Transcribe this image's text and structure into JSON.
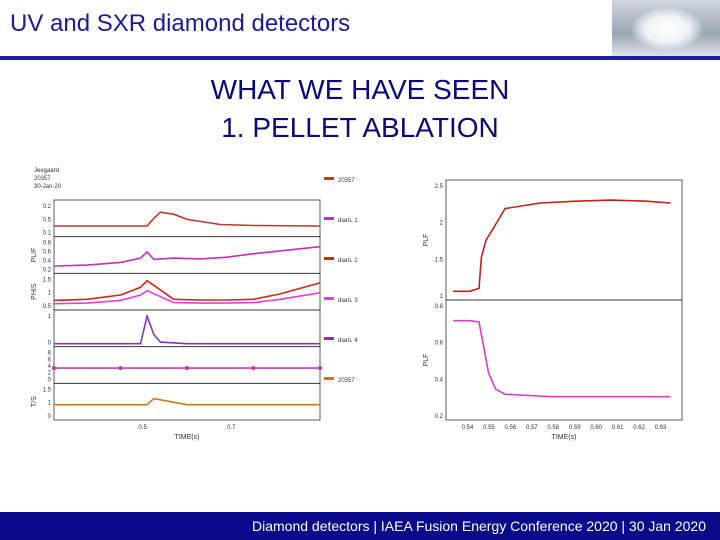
{
  "slide": {
    "title": "UV and SXR diamond detectors",
    "heading_line1": "WHAT WE HAVE SEEN",
    "heading_line2": "1. PELLET ABLATION",
    "footer": "Diamond detectors | IAEA Fusion Energy Conference 2020 | 30 Jan 2020"
  },
  "colors": {
    "title": "#1a1aa0",
    "heading": "#0a0a7a",
    "footer_bg": "#0a0a8a"
  },
  "chart_data": [
    {
      "type": "line",
      "title": "",
      "header": [
        "Jeegaard",
        "20357",
        "30-Jan-20"
      ],
      "xlabel": "TIME(s)",
      "x_ticks": [
        "0.5",
        "0.7"
      ],
      "xlim": [
        0.4,
        0.8
      ],
      "panels": [
        {
          "ylabel": "",
          "y_ticks": [
            "0.2",
            "0.5",
            "0.1"
          ],
          "ylim": [
            0,
            0.6
          ],
          "series": [
            {
              "name": "20357",
              "color": "#c0392b",
              "x": [
                0.4,
                0.48,
                0.52,
                0.54,
                0.55,
                0.56,
                0.58,
                0.6,
                0.65,
                0.7,
                0.8
              ],
              "y": [
                0.15,
                0.15,
                0.15,
                0.15,
                0.3,
                0.42,
                0.38,
                0.28,
                0.18,
                0.16,
                0.15
              ]
            }
          ]
        },
        {
          "ylabel": "PLIF",
          "y_ticks": [
            "0.8",
            "0.6",
            "0.4",
            "0.2"
          ],
          "ylim": [
            0.2,
            0.9
          ],
          "series": [
            {
              "name": "diam. 1",
              "color": "#c030c0",
              "x": [
                0.4,
                0.45,
                0.5,
                0.53,
                0.54,
                0.55,
                0.58,
                0.62,
                0.66,
                0.7,
                0.75,
                0.8
              ],
              "y": [
                0.3,
                0.32,
                0.38,
                0.48,
                0.62,
                0.45,
                0.48,
                0.46,
                0.5,
                0.58,
                0.66,
                0.74
              ]
            }
          ]
        },
        {
          "ylabel": "PHIS",
          "y_ticks": [
            "1.5",
            "1",
            "0.5"
          ],
          "ylim": [
            0.2,
            1.6
          ],
          "series": [
            {
              "name": "diam. 2",
              "color": "#cc2a10",
              "x": [
                0.4,
                0.45,
                0.5,
                0.53,
                0.54,
                0.58,
                0.62,
                0.66,
                0.7,
                0.74,
                0.8
              ],
              "y": [
                0.5,
                0.55,
                0.75,
                1.1,
                1.4,
                0.55,
                0.52,
                0.52,
                0.55,
                0.8,
                1.3
              ]
            },
            {
              "name": "diam. 3",
              "color": "#e040e0",
              "x": [
                0.4,
                0.45,
                0.5,
                0.53,
                0.54,
                0.58,
                0.62,
                0.66,
                0.7,
                0.74,
                0.8
              ],
              "y": [
                0.35,
                0.38,
                0.5,
                0.75,
                0.95,
                0.4,
                0.38,
                0.38,
                0.4,
                0.55,
                0.85
              ]
            }
          ]
        },
        {
          "ylabel": "",
          "y_ticks": [
            "1",
            "0"
          ],
          "ylim": [
            0,
            1
          ],
          "series": [
            {
              "name": "diam. 4",
              "color": "#8b30c0",
              "x": [
                0.4,
                0.53,
                0.54,
                0.55,
                0.56,
                0.6,
                0.8
              ],
              "y": [
                0.0,
                0.0,
                0.9,
                0.3,
                0.05,
                0.0,
                0.0
              ]
            }
          ]
        },
        {
          "ylabel": "",
          "y_ticks": [
            "8",
            "6",
            "4",
            "2",
            "0"
          ],
          "ylim": [
            -1,
            9
          ],
          "series": [
            {
              "name": "markers",
              "color": "#c040c0",
              "x": [
                0.4,
                0.5,
                0.6,
                0.7,
                0.8
              ],
              "y": [
                3,
                3,
                3,
                3,
                3
              ]
            }
          ]
        },
        {
          "ylabel": "T/S",
          "y_ticks": [
            "1.5",
            "1",
            "0"
          ],
          "ylim": [
            -1,
            2
          ],
          "series": [
            {
              "name": "20357",
              "color": "#c87a14",
              "x": [
                0.4,
                0.5,
                0.54,
                0.55,
                0.6,
                0.7,
                0.8
              ],
              "y": [
                0.2,
                0.2,
                0.2,
                0.8,
                0.2,
                0.2,
                0.2
              ]
            }
          ]
        }
      ]
    },
    {
      "type": "line",
      "xlabel": "TIME(s)",
      "x_ticks": [
        "0.54",
        "0.55",
        "0.56",
        "0.57",
        "0.58",
        "0.59",
        "0.60",
        "0.61",
        "0.62",
        "0.63"
      ],
      "xlim": [
        0.535,
        0.635
      ],
      "panels": [
        {
          "ylabel": "PLF",
          "y_ticks": [
            "2.5",
            "2",
            "1.5",
            "1"
          ],
          "ylim": [
            0.9,
            2.9
          ],
          "series": [
            {
              "name": "top",
              "color": "#c0221a",
              "x": [
                0.538,
                0.545,
                0.549,
                0.55,
                0.552,
                0.555,
                0.56,
                0.575,
                0.59,
                0.605,
                0.62,
                0.63
              ],
              "y": [
                1.0,
                1.0,
                1.05,
                1.6,
                1.9,
                2.1,
                2.45,
                2.55,
                2.58,
                2.6,
                2.58,
                2.55
              ]
            }
          ]
        },
        {
          "ylabel": "PLF",
          "y_ticks": [
            "0.8",
            "0.6",
            "0.4",
            "0.2"
          ],
          "ylim": [
            0.1,
            1.0
          ],
          "series": [
            {
              "name": "bottom",
              "color": "#d040d0",
              "x": [
                0.538,
                0.545,
                0.549,
                0.551,
                0.553,
                0.556,
                0.56,
                0.57,
                0.58,
                0.6,
                0.62,
                0.63
              ],
              "y": [
                0.86,
                0.86,
                0.85,
                0.65,
                0.45,
                0.32,
                0.28,
                0.27,
                0.26,
                0.26,
                0.26,
                0.26
              ]
            }
          ]
        }
      ]
    }
  ]
}
